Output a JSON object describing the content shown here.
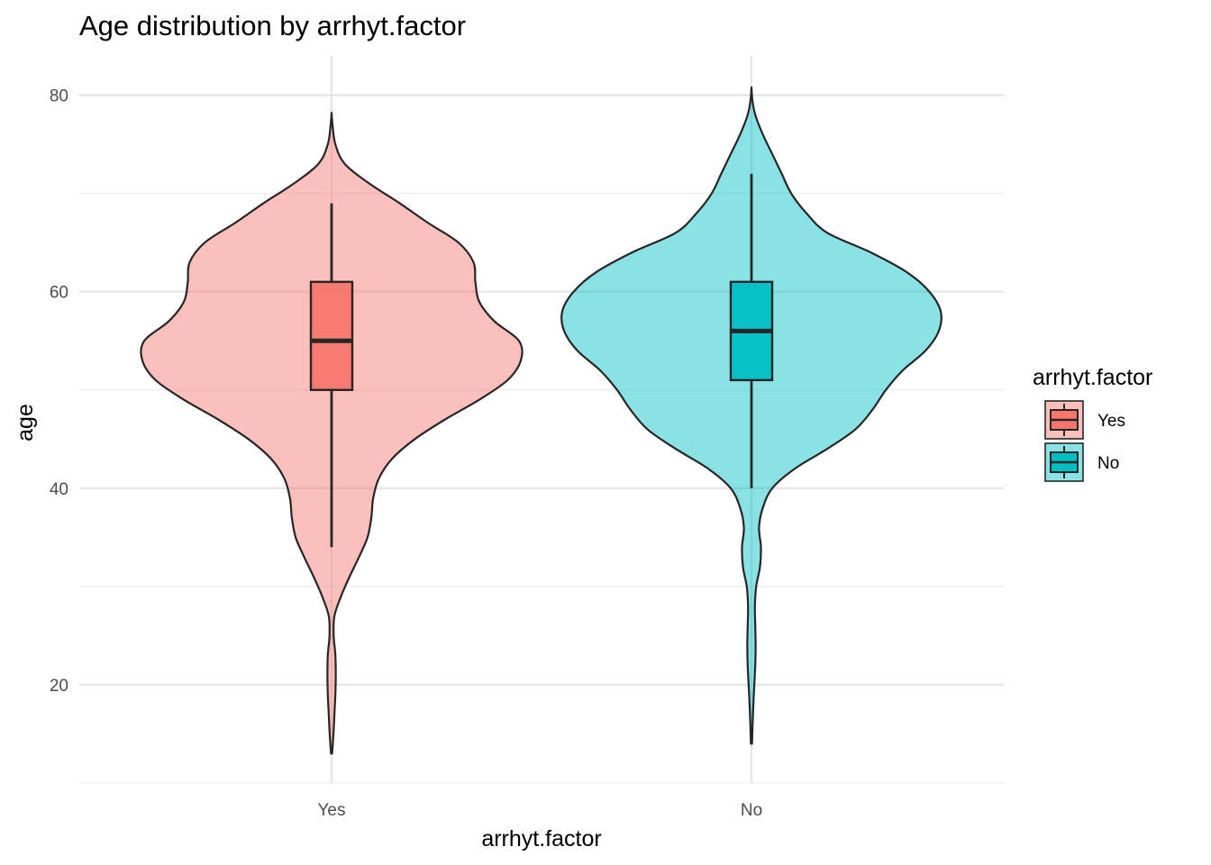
{
  "chart_data": {
    "type": "violin",
    "title": "Age distribution by arrhyt.factor",
    "xlabel": "arrhyt.factor",
    "ylabel": "age",
    "categories": [
      "Yes",
      "No"
    ],
    "ylim": [
      10,
      84
    ],
    "yticks": [
      20,
      40,
      60,
      80
    ],
    "grid": true,
    "legend": {
      "title": "arrhyt.factor",
      "position": "right",
      "entries": [
        {
          "label": "Yes",
          "color": "#F8766D"
        },
        {
          "label": "No",
          "color": "#00BFC4"
        }
      ]
    },
    "colors": {
      "Yes": "#F8766D",
      "No": "#00BFC4",
      "outline": "#262626",
      "grid": "#e6e6e6"
    },
    "series": [
      {
        "category": "Yes",
        "box": {
          "lower_whisker": 34,
          "q1": 50,
          "median": 55,
          "q3": 61,
          "upper_whisker": 69
        },
        "density": [
          {
            "y": 13,
            "w": 0.003
          },
          {
            "y": 15,
            "w": 0.01
          },
          {
            "y": 17,
            "w": 0.015
          },
          {
            "y": 19,
            "w": 0.02
          },
          {
            "y": 21,
            "w": 0.022
          },
          {
            "y": 23,
            "w": 0.02
          },
          {
            "y": 25,
            "w": 0.011
          },
          {
            "y": 27,
            "w": 0.015
          },
          {
            "y": 29,
            "w": 0.05
          },
          {
            "y": 31,
            "w": 0.095
          },
          {
            "y": 33,
            "w": 0.145
          },
          {
            "y": 35,
            "w": 0.19
          },
          {
            "y": 37,
            "w": 0.21
          },
          {
            "y": 39,
            "w": 0.22
          },
          {
            "y": 41,
            "w": 0.25
          },
          {
            "y": 43,
            "w": 0.32
          },
          {
            "y": 45,
            "w": 0.44
          },
          {
            "y": 47,
            "w": 0.6
          },
          {
            "y": 49,
            "w": 0.78
          },
          {
            "y": 51,
            "w": 0.93
          },
          {
            "y": 53,
            "w": 1.0
          },
          {
            "y": 55,
            "w": 0.99
          },
          {
            "y": 57,
            "w": 0.86
          },
          {
            "y": 59,
            "w": 0.78
          },
          {
            "y": 61,
            "w": 0.76
          },
          {
            "y": 63,
            "w": 0.75
          },
          {
            "y": 65,
            "w": 0.67
          },
          {
            "y": 67,
            "w": 0.51
          },
          {
            "y": 69,
            "w": 0.36
          },
          {
            "y": 71,
            "w": 0.2
          },
          {
            "y": 73,
            "w": 0.07
          },
          {
            "y": 75,
            "w": 0.02
          },
          {
            "y": 77,
            "w": 0.005
          },
          {
            "y": 78.2,
            "w": 0.0
          }
        ]
      },
      {
        "category": "No",
        "box": {
          "lower_whisker": 40,
          "q1": 51,
          "median": 56,
          "q3": 61,
          "upper_whisker": 72
        },
        "density": [
          {
            "y": 14,
            "w": 0.003
          },
          {
            "y": 16,
            "w": 0.006
          },
          {
            "y": 18,
            "w": 0.01
          },
          {
            "y": 20,
            "w": 0.015
          },
          {
            "y": 22,
            "w": 0.02
          },
          {
            "y": 24,
            "w": 0.022
          },
          {
            "y": 26,
            "w": 0.02
          },
          {
            "y": 28,
            "w": 0.018
          },
          {
            "y": 30,
            "w": 0.025
          },
          {
            "y": 32,
            "w": 0.045
          },
          {
            "y": 34,
            "w": 0.05
          },
          {
            "y": 36,
            "w": 0.04
          },
          {
            "y": 38,
            "w": 0.06
          },
          {
            "y": 40,
            "w": 0.11
          },
          {
            "y": 42,
            "w": 0.23
          },
          {
            "y": 44,
            "w": 0.4
          },
          {
            "y": 46,
            "w": 0.55
          },
          {
            "y": 48,
            "w": 0.64
          },
          {
            "y": 50,
            "w": 0.71
          },
          {
            "y": 52,
            "w": 0.8
          },
          {
            "y": 54,
            "w": 0.92
          },
          {
            "y": 56,
            "w": 0.99
          },
          {
            "y": 58,
            "w": 1.0
          },
          {
            "y": 60,
            "w": 0.94
          },
          {
            "y": 62,
            "w": 0.82
          },
          {
            "y": 64,
            "w": 0.63
          },
          {
            "y": 66,
            "w": 0.4
          },
          {
            "y": 68,
            "w": 0.29
          },
          {
            "y": 70,
            "w": 0.21
          },
          {
            "y": 72,
            "w": 0.16
          },
          {
            "y": 74,
            "w": 0.11
          },
          {
            "y": 76,
            "w": 0.06
          },
          {
            "y": 78,
            "w": 0.02
          },
          {
            "y": 79.5,
            "w": 0.005
          },
          {
            "y": 80.8,
            "w": 0.0
          }
        ]
      }
    ]
  }
}
